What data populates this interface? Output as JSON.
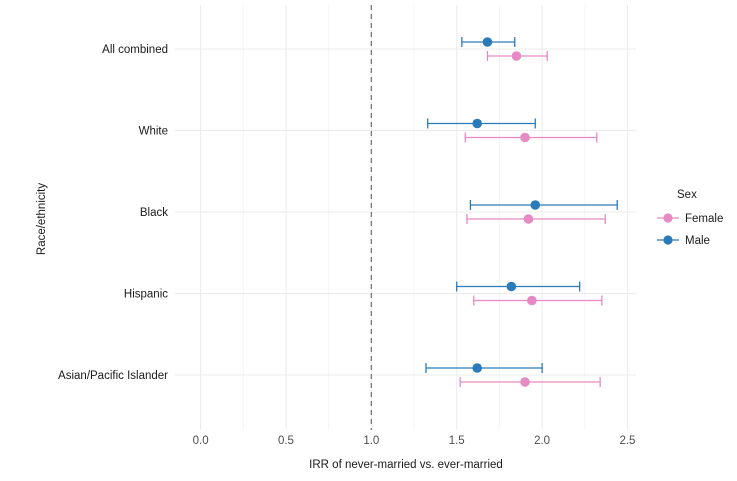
{
  "chart_data": {
    "type": "forest",
    "xlabel": "IRR of never-married vs. ever-married",
    "ylabel": "Race/ethnicity",
    "xlim": [
      -0.15,
      2.55
    ],
    "xticks": [
      "0.0",
      "0.5",
      "1.0",
      "1.5",
      "2.0",
      "2.5"
    ],
    "xtick_values": [
      0,
      0.5,
      1,
      1.5,
      2,
      2.5
    ],
    "reference_line": 1.0,
    "categories": [
      "All combined",
      "White",
      "Black",
      "Hispanic",
      "Asian/Pacific Islander"
    ],
    "legend": {
      "title": "Sex",
      "position": "right",
      "items": [
        {
          "label": "Female",
          "color": "#e78ac3"
        },
        {
          "label": "Male",
          "color": "#2b7bba"
        }
      ]
    },
    "series": [
      {
        "name": "Male",
        "color": "#2b7bba",
        "points": [
          {
            "category": "All combined",
            "estimate": 1.68,
            "lower": 1.53,
            "upper": 1.84
          },
          {
            "category": "White",
            "estimate": 1.62,
            "lower": 1.33,
            "upper": 1.96
          },
          {
            "category": "Black",
            "estimate": 1.96,
            "lower": 1.58,
            "upper": 2.44
          },
          {
            "category": "Hispanic",
            "estimate": 1.82,
            "lower": 1.5,
            "upper": 2.22
          },
          {
            "category": "Asian/Pacific Islander",
            "estimate": 1.62,
            "lower": 1.32,
            "upper": 2.0
          }
        ]
      },
      {
        "name": "Female",
        "color": "#e78ac3",
        "points": [
          {
            "category": "All combined",
            "estimate": 1.85,
            "lower": 1.68,
            "upper": 2.03
          },
          {
            "category": "White",
            "estimate": 1.9,
            "lower": 1.55,
            "upper": 2.32
          },
          {
            "category": "Black",
            "estimate": 1.92,
            "lower": 1.56,
            "upper": 2.37
          },
          {
            "category": "Hispanic",
            "estimate": 1.94,
            "lower": 1.6,
            "upper": 2.35
          },
          {
            "category": "Asian/Pacific Islander",
            "estimate": 1.9,
            "lower": 1.52,
            "upper": 2.34
          }
        ]
      }
    ]
  }
}
